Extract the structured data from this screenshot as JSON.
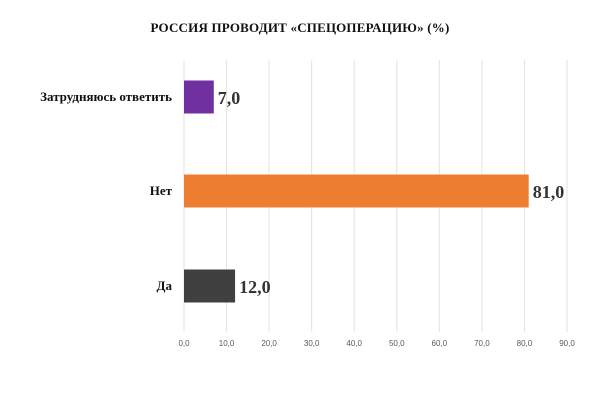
{
  "chart_data": {
    "type": "bar",
    "orientation": "horizontal",
    "title": "РОССИЯ ПРОВОДИТ «СПЕЦОПЕРАЦИЮ» (%)",
    "categories": [
      "Затрудняюсь ответить",
      "Нет",
      "Да"
    ],
    "values": [
      7.0,
      81.0,
      12.0
    ],
    "value_labels": [
      "7,0",
      "81,0",
      "12,0"
    ],
    "colors": [
      "#7030a0",
      "#ed7d31",
      "#404040"
    ],
    "xlim": [
      0,
      90
    ],
    "x_ticks": [
      "0,0",
      "10,0",
      "20,0",
      "30,0",
      "40,0",
      "50,0",
      "60,0",
      "70,0",
      "80,0",
      "90,0"
    ],
    "grid": true,
    "legend": "none"
  }
}
